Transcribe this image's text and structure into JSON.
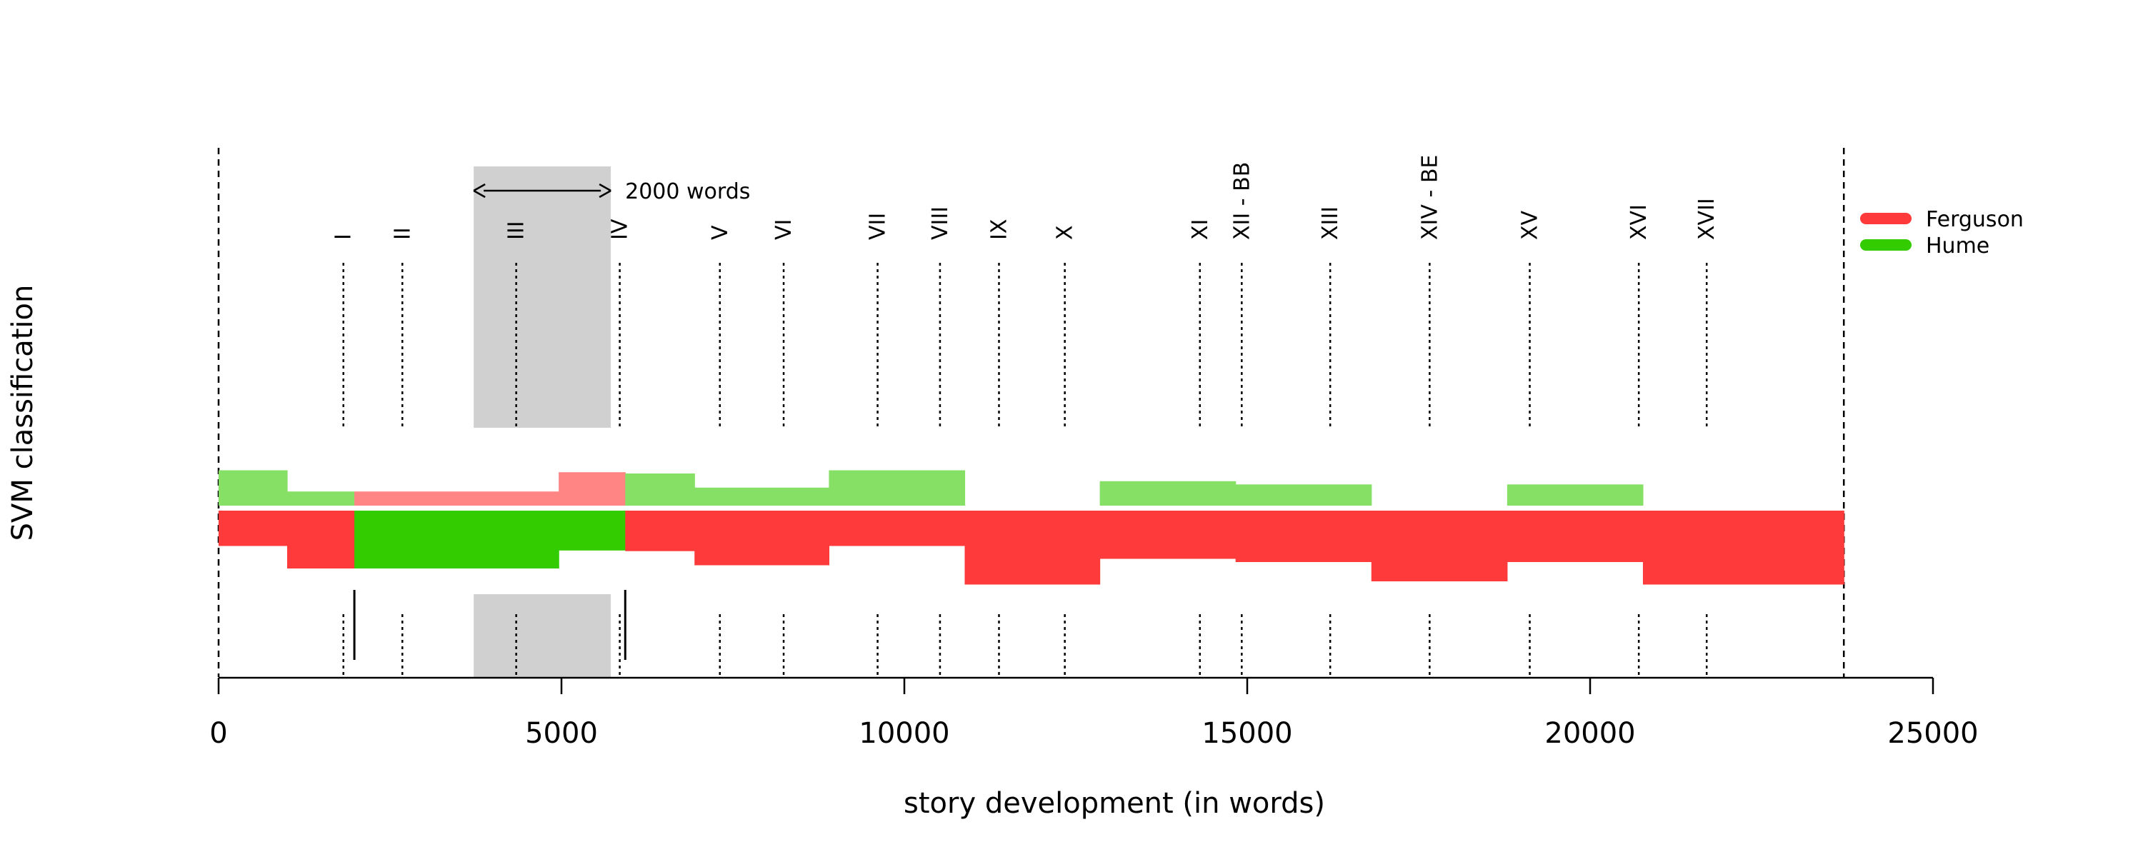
{
  "chart_data": {
    "type": "timeline",
    "xlabel": "story development (in words)",
    "ylabel": "SVM classification",
    "xlim": [
      0,
      25000
    ],
    "x_ticks": [
      0,
      5000,
      10000,
      15000,
      20000,
      25000
    ],
    "x_tick_labels": [
      "0",
      "5000",
      "10000",
      "15000",
      "20000",
      "25000"
    ],
    "text_end": 23700,
    "window": {
      "start": 3720,
      "end": 5720,
      "label": "2000 words"
    },
    "chapters": [
      {
        "label": "I",
        "x": 1820
      },
      {
        "label": "II",
        "x": 2680
      },
      {
        "label": "III",
        "x": 4340
      },
      {
        "label": "IV",
        "x": 5850
      },
      {
        "label": "V",
        "x": 7310
      },
      {
        "label": "VI",
        "x": 8240
      },
      {
        "label": "VII",
        "x": 9610
      },
      {
        "label": "VIII",
        "x": 10520
      },
      {
        "label": "IX",
        "x": 11380
      },
      {
        "label": "X",
        "x": 12340
      },
      {
        "label": "XI",
        "x": 14310
      },
      {
        "label": "XII - BB",
        "x": 14920
      },
      {
        "label": "XIII",
        "x": 16210
      },
      {
        "label": "XIV - BE",
        "x": 17660
      },
      {
        "label": "XV",
        "x": 19120
      },
      {
        "label": "XVI",
        "x": 20710
      },
      {
        "label": "XVII",
        "x": 21700
      }
    ],
    "change_markers": [
      1980,
      5930
    ],
    "segments": [
      {
        "start": 0,
        "end": 1000,
        "winner": "Ferguson",
        "ferguson": 0.55,
        "hume": 0.55
      },
      {
        "start": 1000,
        "end": 1980,
        "winner": "Ferguson",
        "ferguson": 0.9,
        "hume": 0.22
      },
      {
        "start": 1980,
        "end": 4960,
        "winner": "Hume",
        "ferguson": 0.22,
        "hume": 0.9
      },
      {
        "start": 4960,
        "end": 5930,
        "winner": "Hume",
        "ferguson": 0.52,
        "hume": 0.62
      },
      {
        "start": 5930,
        "end": 6940,
        "winner": "Ferguson",
        "ferguson": 0.63,
        "hume": 0.5
      },
      {
        "start": 6940,
        "end": 8900,
        "winner": "Ferguson",
        "ferguson": 0.85,
        "hume": 0.28
      },
      {
        "start": 8900,
        "end": 10880,
        "winner": "Ferguson",
        "ferguson": 0.55,
        "hume": 0.55
      },
      {
        "start": 10880,
        "end": 12850,
        "winner": "Ferguson",
        "ferguson": 1.15,
        "hume": 0.0
      },
      {
        "start": 12850,
        "end": 14830,
        "winner": "Ferguson",
        "ferguson": 0.75,
        "hume": 0.38
      },
      {
        "start": 14830,
        "end": 16810,
        "winner": "Ferguson",
        "ferguson": 0.8,
        "hume": 0.33
      },
      {
        "start": 16810,
        "end": 18790,
        "winner": "Ferguson",
        "ferguson": 1.1,
        "hume": 0.0
      },
      {
        "start": 18790,
        "end": 20770,
        "winner": "Ferguson",
        "ferguson": 0.8,
        "hume": 0.33
      },
      {
        "start": 20770,
        "end": 23700,
        "winner": "Ferguson",
        "ferguson": 1.15,
        "hume": 0.0
      }
    ],
    "legend": [
      {
        "name": "Ferguson",
        "color": "#ff3a3a"
      },
      {
        "name": "Hume",
        "color": "#33cc00"
      }
    ],
    "colors": {
      "ferguson": "#ff3a3a",
      "ferguson_light": "#ff8585",
      "hume": "#33cc00",
      "hume_light": "#85e065",
      "window": "#d0d0d0"
    },
    "legend_position": "top-right",
    "grid": false
  }
}
